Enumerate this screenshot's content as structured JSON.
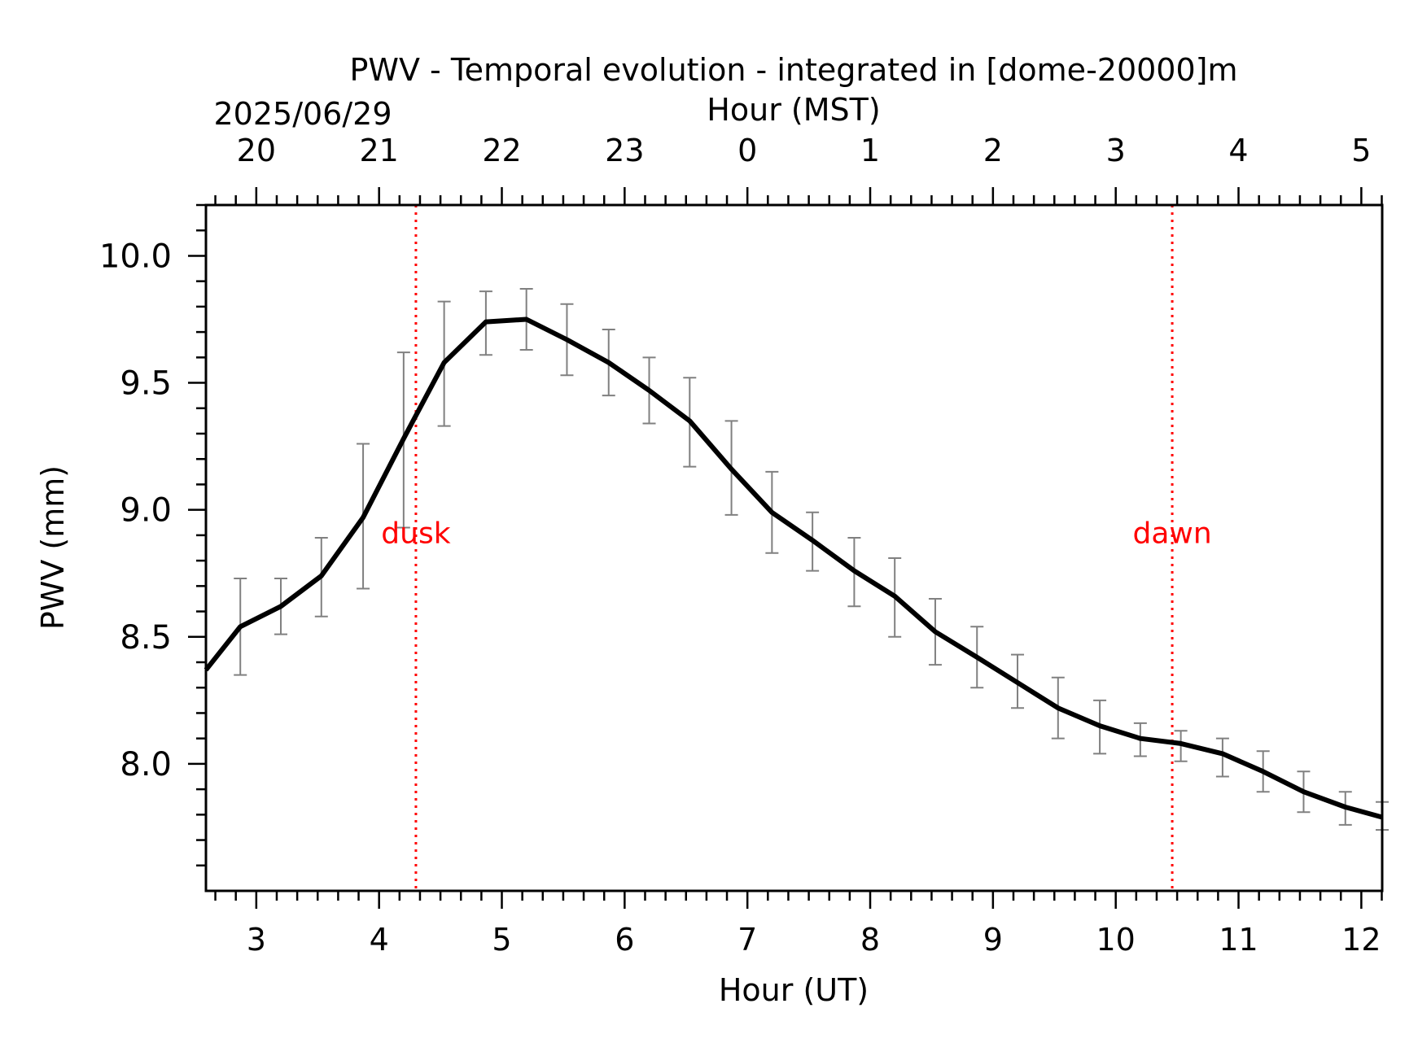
{
  "chart_data": {
    "type": "line",
    "title": "PWV - Temporal evolution - integrated in [dome-20000]m",
    "xlabel": "Hour (UT)",
    "ylabel": "PWV (mm)",
    "top_xlabel": "Hour (MST)",
    "top_date": "2025/06/29",
    "xlim": [
      2.59,
      12.17
    ],
    "ylim": [
      7.5,
      10.2
    ],
    "x_ticks": [
      3,
      4,
      5,
      6,
      7,
      8,
      9,
      10,
      11,
      12
    ],
    "x_tick_labels": [
      "3",
      "4",
      "5",
      "6",
      "7",
      "8",
      "9",
      "10",
      "11",
      "12"
    ],
    "top_tick_labels": [
      "20",
      "21",
      "22",
      "23",
      "0",
      "1",
      "2",
      "3",
      "4",
      "5"
    ],
    "y_ticks": [
      8.0,
      8.5,
      9.0,
      9.5,
      10.0
    ],
    "y_tick_labels": [
      "8.0",
      "8.5",
      "9.0",
      "9.5",
      "10.0"
    ],
    "series": [
      {
        "name": "PWV",
        "color": "#000000",
        "x": [
          2.59,
          2.87,
          3.2,
          3.53,
          3.87,
          4.2,
          4.53,
          4.87,
          5.2,
          5.53,
          5.87,
          6.2,
          6.53,
          6.87,
          7.2,
          7.53,
          7.87,
          8.2,
          8.53,
          8.87,
          9.2,
          9.53,
          9.87,
          10.2,
          10.53,
          10.87,
          11.2,
          11.53,
          11.87,
          12.17
        ],
        "y": [
          8.37,
          8.54,
          8.62,
          8.74,
          8.97,
          9.28,
          9.58,
          9.74,
          9.75,
          9.67,
          9.58,
          9.47,
          9.35,
          9.16,
          8.99,
          8.88,
          8.76,
          8.66,
          8.52,
          8.42,
          8.32,
          8.22,
          8.15,
          8.1,
          8.08,
          8.04,
          7.97,
          7.89,
          7.83,
          7.79
        ]
      }
    ],
    "error_bars": {
      "color": "#808080",
      "x": [
        2.87,
        3.2,
        3.53,
        3.87,
        4.2,
        4.53,
        4.87,
        5.2,
        5.53,
        5.87,
        6.2,
        6.53,
        6.87,
        7.2,
        7.53,
        7.87,
        8.2,
        8.53,
        8.87,
        9.2,
        9.53,
        9.87,
        10.2,
        10.53,
        10.87,
        11.2,
        11.53,
        11.87,
        12.17
      ],
      "low": [
        8.35,
        8.51,
        8.58,
        8.69,
        8.93,
        9.33,
        9.61,
        9.63,
        9.53,
        9.45,
        9.34,
        9.17,
        8.98,
        8.83,
        8.76,
        8.62,
        8.5,
        8.39,
        8.3,
        8.22,
        8.1,
        8.04,
        8.03,
        8.01,
        7.95,
        7.89,
        7.81,
        7.76,
        7.74
      ],
      "high": [
        8.73,
        8.73,
        8.89,
        9.26,
        9.62,
        9.82,
        9.86,
        9.87,
        9.81,
        9.71,
        9.6,
        9.52,
        9.35,
        9.15,
        8.99,
        8.89,
        8.81,
        8.65,
        8.54,
        8.43,
        8.34,
        8.25,
        8.16,
        8.13,
        8.1,
        8.05,
        7.97,
        7.89,
        7.85
      ]
    },
    "vlines": [
      {
        "x": 4.3,
        "label": "dusk",
        "color": "#ff0000"
      },
      {
        "x": 10.46,
        "label": "dawn",
        "color": "#ff0000"
      }
    ],
    "annotation_y": 8.87
  }
}
